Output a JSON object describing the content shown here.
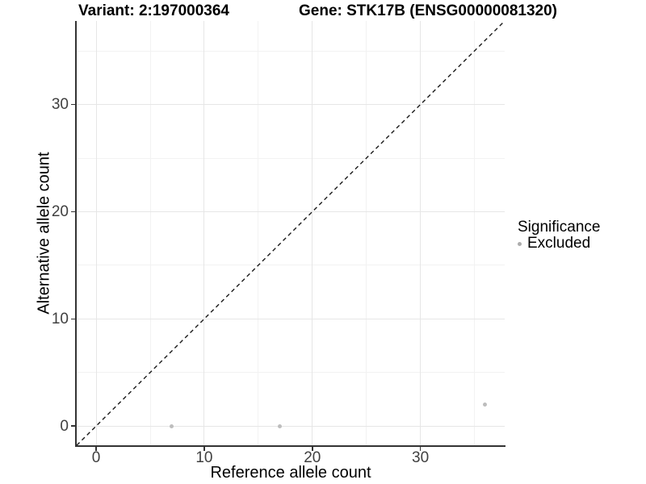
{
  "chart_data": {
    "type": "scatter",
    "title_left": "Variant: 2:197000364",
    "title_right": "Gene: STK17B (ENSG00000081320)",
    "xlabel": "Reference allele count",
    "ylabel": "Alternative allele count",
    "xlim": [
      -1.8,
      37.8
    ],
    "ylim": [
      -1.8,
      37.8
    ],
    "x_ticks": [
      0,
      10,
      20,
      30
    ],
    "y_ticks": [
      0,
      10,
      20,
      30
    ],
    "x_minor_ticks": [
      5,
      15,
      25,
      35
    ],
    "y_minor_ticks": [
      5,
      15,
      25,
      35
    ],
    "grid": "major+minor",
    "identity_line": {
      "shown": true,
      "style": "dashed",
      "color": "#1a1a1a",
      "from": [
        -1.8,
        -1.8
      ],
      "to": [
        37.8,
        37.8
      ]
    },
    "series": [
      {
        "name": "Excluded",
        "color": "#bdbdbd",
        "points": [
          [
            7,
            0
          ],
          [
            17,
            0
          ],
          [
            36,
            2
          ]
        ]
      }
    ],
    "legend": {
      "title": "Significance",
      "position": "right",
      "entries": [
        {
          "label": "Excluded",
          "color": "#adadad"
        }
      ]
    }
  },
  "colors": {
    "background": "#ffffff",
    "grid_major": "#e6e6e6",
    "grid_minor": "#f2f2f2",
    "axis_line": "#333333",
    "tick_text": "#404040",
    "title_text": "#000000"
  }
}
